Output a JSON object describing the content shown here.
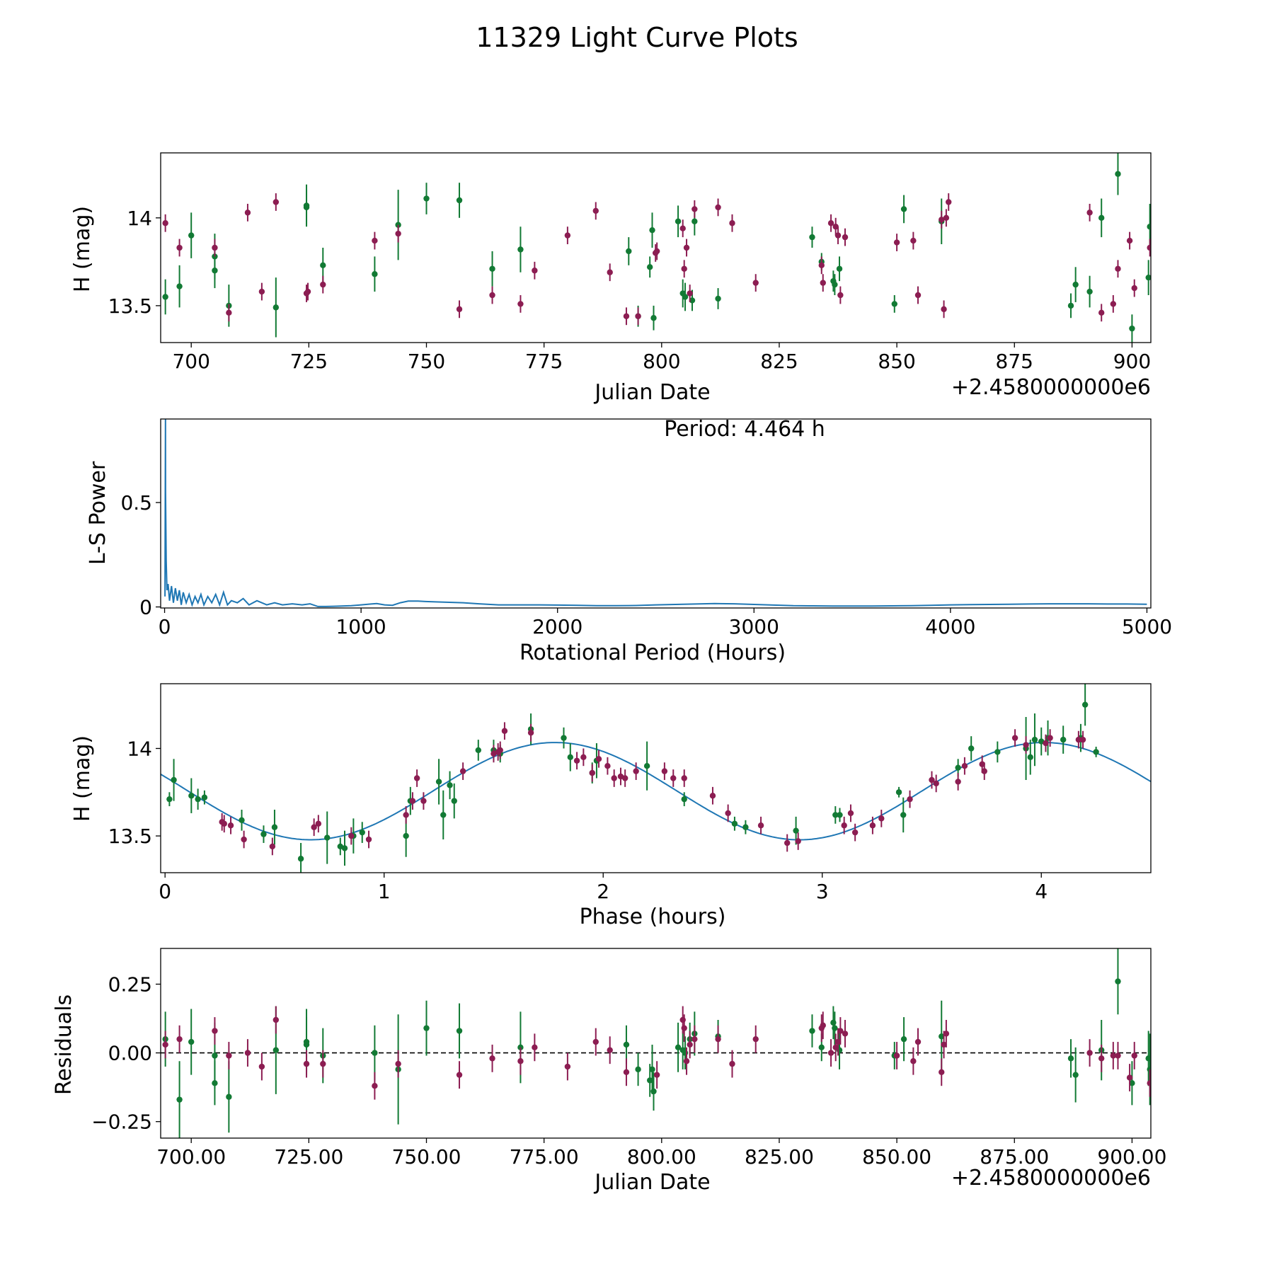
{
  "figure": {
    "title": "11329 Light Curve Plots"
  },
  "colors": {
    "green": "#127a34",
    "magenta": "#8c1d52",
    "line": "#1f77b4"
  },
  "chart_data": [
    {
      "id": "lightcurve",
      "type": "scatter",
      "title": "",
      "xlabel": "Julian Date",
      "ylabel": "H (mag)",
      "xoffset_label": "+2.4580000000e6",
      "xlim": [
        693.5,
        904
      ],
      "ylim": [
        13.29,
        14.37
      ],
      "xticks": [
        700,
        725,
        750,
        775,
        800,
        825,
        850,
        875,
        900
      ],
      "yticks": [
        13.5,
        14.0
      ],
      "series": [
        {
          "name": "green",
          "color": "#127a34",
          "x": [
            694.5,
            697.5,
            700,
            705,
            705,
            708,
            718,
            724.5,
            724.5,
            728,
            739,
            744,
            750,
            757,
            764,
            770,
            793,
            795,
            797.5,
            798,
            798.3,
            803.5,
            804.5,
            805,
            806.5,
            807,
            812,
            832,
            834,
            836.5,
            836.8,
            837.8,
            849.5,
            851.5,
            859.5,
            887,
            888,
            891,
            893.5,
            897,
            900,
            903.5,
            903.8
          ],
          "y": [
            13.55,
            13.61,
            13.9,
            13.78,
            13.7,
            13.5,
            13.49,
            14.07,
            14.06,
            13.73,
            13.68,
            13.96,
            14.11,
            14.1,
            13.71,
            13.82,
            13.81,
            13.44,
            13.72,
            13.93,
            13.43,
            13.98,
            13.57,
            13.55,
            13.53,
            13.98,
            13.54,
            13.89,
            13.75,
            13.64,
            13.62,
            13.71,
            13.51,
            14.05,
            13.98,
            13.5,
            13.62,
            13.58,
            14.0,
            14.25,
            13.37,
            13.66,
            13.95
          ],
          "err": [
            0.1,
            0.12,
            0.13,
            0.13,
            0.1,
            0.12,
            0.17,
            0.12,
            0.1,
            0.1,
            0.1,
            0.2,
            0.09,
            0.1,
            0.1,
            0.13,
            0.08,
            0.06,
            0.06,
            0.1,
            0.07,
            0.09,
            0.08,
            0.08,
            0.06,
            0.08,
            0.06,
            0.06,
            0.05,
            0.06,
            0.06,
            0.07,
            0.05,
            0.08,
            0.13,
            0.07,
            0.1,
            0.09,
            0.11,
            0.12,
            0.08,
            0.1,
            0.13
          ]
        },
        {
          "name": "magenta",
          "color": "#8c1d52",
          "x": [
            694.5,
            697.5,
            705,
            708,
            712,
            715,
            718,
            724.5,
            724.8,
            728,
            739,
            744,
            757,
            764,
            770,
            773,
            780,
            786,
            789,
            792.5,
            795,
            798.7,
            799,
            804.5,
            804.8,
            805.3,
            806,
            807,
            812,
            815,
            820,
            834,
            834.3,
            836,
            837,
            837.5,
            838,
            839,
            850,
            853.5,
            854.5,
            859.5,
            860,
            860.5,
            861,
            891,
            893.5,
            896,
            897,
            899.5,
            900.5,
            903.8
          ],
          "y": [
            13.97,
            13.83,
            13.83,
            13.46,
            14.03,
            13.58,
            14.09,
            13.57,
            13.58,
            13.62,
            13.87,
            13.91,
            13.48,
            13.56,
            13.51,
            13.7,
            13.9,
            14.04,
            13.69,
            13.44,
            13.44,
            13.8,
            13.81,
            13.94,
            13.71,
            13.83,
            13.57,
            14.05,
            14.06,
            13.97,
            13.63,
            13.73,
            13.63,
            13.97,
            13.95,
            13.9,
            13.56,
            13.89,
            13.86,
            13.87,
            13.56,
            13.99,
            13.48,
            14.0,
            14.09,
            14.03,
            13.46,
            13.51,
            13.71,
            13.87,
            13.6,
            13.83
          ]
        }
      ]
    },
    {
      "id": "periodogram",
      "type": "line",
      "xlabel": "Rotational Period (Hours)",
      "ylabel": "L-S Power",
      "annotation": "Period: 4.464 h",
      "xlim": [
        -20,
        5020
      ],
      "ylim": [
        -0.005,
        0.9
      ],
      "xticks": [
        0,
        1000,
        2000,
        3000,
        4000,
        5000
      ],
      "yticks": [
        0.0,
        0.5
      ],
      "series": [
        {
          "name": "power",
          "x": [
            2,
            4.46,
            5,
            8,
            12,
            18,
            25,
            35,
            45,
            55,
            65,
            75,
            85,
            95,
            110,
            125,
            140,
            155,
            170,
            185,
            200,
            220,
            240,
            260,
            280,
            300,
            320,
            340,
            370,
            400,
            430,
            470,
            520,
            560,
            600,
            650,
            700,
            740,
            780,
            820,
            860,
            900,
            950,
            1000,
            1050,
            1080,
            1120,
            1160,
            1200,
            1240,
            1290,
            1330,
            1380,
            1450,
            1520,
            1600,
            1700,
            1800,
            1900,
            2000,
            2100,
            2200,
            2300,
            2400,
            2500,
            2600,
            2700,
            2800,
            2900,
            3000,
            3100,
            3200,
            3300,
            3400,
            3500,
            3600,
            3700,
            3800,
            3900,
            4000,
            4100,
            4200,
            4300,
            4400,
            4500,
            4600,
            4700,
            4800,
            4900,
            5000
          ],
          "y": [
            0.05,
            0.9,
            0.55,
            0.22,
            0.08,
            0.11,
            0.03,
            0.1,
            0.02,
            0.09,
            0.03,
            0.08,
            0.01,
            0.07,
            0.02,
            0.06,
            0.01,
            0.05,
            0.02,
            0.06,
            0.01,
            0.05,
            0.02,
            0.06,
            0.01,
            0.07,
            0.01,
            0.03,
            0.02,
            0.04,
            0.01,
            0.03,
            0.01,
            0.02,
            0.01,
            0.015,
            0.01,
            0.015,
            0.002,
            0.002,
            0.003,
            0.004,
            0.006,
            0.01,
            0.014,
            0.016,
            0.01,
            0.008,
            0.02,
            0.028,
            0.028,
            0.026,
            0.024,
            0.022,
            0.02,
            0.015,
            0.01,
            0.01,
            0.01,
            0.009,
            0.008,
            0.006,
            0.006,
            0.007,
            0.01,
            0.012,
            0.014,
            0.016,
            0.015,
            0.012,
            0.009,
            0.006,
            0.005,
            0.004,
            0.004,
            0.004,
            0.005,
            0.006,
            0.008,
            0.01,
            0.011,
            0.012,
            0.013,
            0.014,
            0.015,
            0.015,
            0.015,
            0.014,
            0.014,
            0.013
          ]
        }
      ]
    },
    {
      "id": "phased",
      "type": "scatter",
      "xlabel": "Phase (hours)",
      "ylabel": "H (mag)",
      "xlim": [
        -0.02,
        4.5
      ],
      "ylim": [
        13.29,
        14.37
      ],
      "xticks": [
        0,
        1,
        2,
        3,
        4
      ],
      "yticks": [
        13.5,
        14.0
      ],
      "fit": {
        "name": "model",
        "mean": 13.756,
        "amplitude": 0.278,
        "period": 2.232,
        "phase_of_max": 1.78
      },
      "series": [
        {
          "name": "green",
          "color": "#127a34",
          "x": [
            0.02,
            0.04,
            0.12,
            0.15,
            0.18,
            0.35,
            0.45,
            0.5,
            0.62,
            0.74,
            0.8,
            0.82,
            0.86,
            0.9,
            1.1,
            1.12,
            1.25,
            1.27,
            1.3,
            1.32,
            1.43,
            1.5,
            1.53,
            1.67,
            1.82,
            1.85,
            1.95,
            1.97,
            2.2,
            2.37,
            2.6,
            2.65,
            2.88,
            3.06,
            3.08,
            3.35,
            3.37,
            3.62,
            3.68,
            3.8,
            3.93,
            3.95,
            3.97,
            4.0,
            4.03,
            4.1,
            4.18,
            4.2,
            4.25
          ],
          "y": [
            13.71,
            13.82,
            13.73,
            13.71,
            13.72,
            13.59,
            13.51,
            13.55,
            13.37,
            13.49,
            13.44,
            13.43,
            13.5,
            13.52,
            13.5,
            13.7,
            13.81,
            13.62,
            13.79,
            13.7,
            13.99,
            13.99,
            13.97,
            14.11,
            14.06,
            13.95,
            13.86,
            13.93,
            13.9,
            13.71,
            13.57,
            13.55,
            13.53,
            13.62,
            13.62,
            13.75,
            13.62,
            13.89,
            14.0,
            13.98,
            14.0,
            13.95,
            14.05,
            14.04,
            14.06,
            14.05,
            14.06,
            14.25,
            13.98
          ],
          "err": [
            0.04,
            0.12,
            0.1,
            0.06,
            0.04,
            0.06,
            0.05,
            0.1,
            0.09,
            0.15,
            0.05,
            0.1,
            0.1,
            0.06,
            0.12,
            0.08,
            0.13,
            0.14,
            0.08,
            0.1,
            0.06,
            0.06,
            0.05,
            0.09,
            0.06,
            0.08,
            0.06,
            0.1,
            0.14,
            0.04,
            0.04,
            0.04,
            0.08,
            0.05,
            0.04,
            0.03,
            0.1,
            0.05,
            0.07,
            0.06,
            0.18,
            0.1,
            0.15,
            0.08,
            0.1,
            0.08,
            0.08,
            0.12,
            0.03
          ]
        },
        {
          "name": "magenta",
          "color": "#8c1d52",
          "x": [
            0.26,
            0.27,
            0.3,
            0.36,
            0.49,
            0.68,
            0.7,
            0.85,
            0.93,
            1.1,
            1.13,
            1.15,
            1.18,
            1.36,
            1.5,
            1.52,
            1.53,
            1.55,
            1.67,
            1.88,
            1.91,
            1.95,
            1.98,
            2.02,
            2.05,
            2.08,
            2.1,
            2.15,
            2.28,
            2.32,
            2.37,
            2.5,
            2.57,
            2.72,
            2.84,
            2.89,
            3.1,
            3.13,
            3.15,
            3.23,
            3.27,
            3.4,
            3.5,
            3.52,
            3.62,
            3.65,
            3.73,
            3.74,
            3.88,
            3.93,
            4.02,
            4.04,
            4.17,
            4.19
          ],
          "y": [
            13.58,
            13.57,
            13.56,
            13.48,
            13.44,
            13.55,
            13.57,
            13.5,
            13.48,
            13.62,
            13.7,
            13.83,
            13.7,
            13.87,
            13.97,
            13.98,
            13.99,
            14.1,
            14.09,
            13.93,
            13.95,
            13.86,
            13.94,
            13.9,
            13.83,
            13.84,
            13.83,
            13.87,
            13.87,
            13.83,
            13.83,
            13.73,
            13.63,
            13.56,
            13.46,
            13.47,
            13.56,
            13.63,
            13.52,
            13.56,
            13.6,
            13.71,
            13.82,
            13.8,
            13.81,
            13.9,
            13.91,
            13.87,
            14.06,
            14.02,
            14.03,
            14.06,
            14.05,
            14.05
          ]
        }
      ]
    },
    {
      "id": "residuals",
      "type": "scatter",
      "xlabel": "Julian Date",
      "ylabel": "Residuals",
      "xoffset_label": "+2.4580000000e6",
      "xlim": [
        693.5,
        904
      ],
      "ylim": [
        -0.31,
        0.38
      ],
      "xticks": [
        700,
        725,
        750,
        775,
        800,
        825,
        850,
        875,
        900
      ],
      "yticks": [
        -0.25,
        0.0,
        0.25
      ],
      "zero_line": 0,
      "series": [
        {
          "name": "green",
          "color": "#127a34",
          "x": [
            694.5,
            697.5,
            700,
            705,
            705,
            708,
            718,
            724.5,
            724.5,
            728,
            739,
            744,
            750,
            757,
            770,
            792.5,
            795,
            797.5,
            798,
            798.3,
            803.5,
            804.5,
            805,
            806,
            807,
            812,
            832,
            834,
            836.5,
            836.8,
            837.8,
            849.5,
            851.5,
            859.5,
            887,
            888,
            893.5,
            897,
            900,
            903.5,
            903.8
          ],
          "y": [
            0.05,
            -0.17,
            0.04,
            -0.01,
            -0.11,
            -0.16,
            0.01,
            0.04,
            0.03,
            -0.01,
            0.0,
            -0.06,
            0.09,
            0.08,
            0.02,
            0.03,
            -0.06,
            -0.1,
            -0.06,
            -0.14,
            0.02,
            0.01,
            0.0,
            0.05,
            0.07,
            0.06,
            0.08,
            0.02,
            0.11,
            0.09,
            0.01,
            -0.01,
            0.05,
            0.06,
            -0.02,
            -0.08,
            0.01,
            0.26,
            -0.11,
            -0.02,
            -0.06
          ],
          "err": [
            0.1,
            0.14,
            0.12,
            0.12,
            0.08,
            0.13,
            0.16,
            0.12,
            0.1,
            0.1,
            0.1,
            0.2,
            0.1,
            0.1,
            0.13,
            0.07,
            0.06,
            0.06,
            0.09,
            0.07,
            0.09,
            0.07,
            0.06,
            0.06,
            0.08,
            0.06,
            0.06,
            0.05,
            0.06,
            0.06,
            0.07,
            0.05,
            0.08,
            0.13,
            0.07,
            0.1,
            0.11,
            0.12,
            0.08,
            0.1,
            0.13
          ]
        },
        {
          "name": "magenta",
          "color": "#8c1d52",
          "x": [
            694.5,
            697.5,
            705,
            708,
            712,
            715,
            718,
            724.5,
            728,
            739,
            744,
            757,
            764,
            770,
            773,
            780,
            786,
            789,
            792.5,
            799,
            804.5,
            804.8,
            805.3,
            806,
            807,
            812,
            815,
            820,
            834,
            834.3,
            836,
            837,
            837.5,
            838,
            839,
            850,
            853.5,
            854.5,
            859.5,
            860,
            860.5,
            891,
            893.5,
            896,
            897,
            899.5,
            900.5,
            903.8
          ],
          "y": [
            0.03,
            0.05,
            0.08,
            -0.01,
            0.0,
            -0.05,
            0.12,
            -0.04,
            -0.04,
            -0.12,
            -0.04,
            -0.08,
            -0.02,
            -0.03,
            0.02,
            -0.05,
            0.04,
            0.01,
            -0.07,
            -0.08,
            0.12,
            0.09,
            -0.03,
            0.03,
            0.05,
            0.05,
            -0.04,
            0.05,
            0.09,
            0.1,
            0.0,
            0.02,
            0.04,
            0.08,
            0.07,
            -0.01,
            -0.03,
            0.04,
            -0.07,
            0.03,
            0.07,
            0.0,
            -0.02,
            -0.01,
            -0.01,
            -0.09,
            -0.01,
            -0.11
          ]
        }
      ]
    }
  ]
}
